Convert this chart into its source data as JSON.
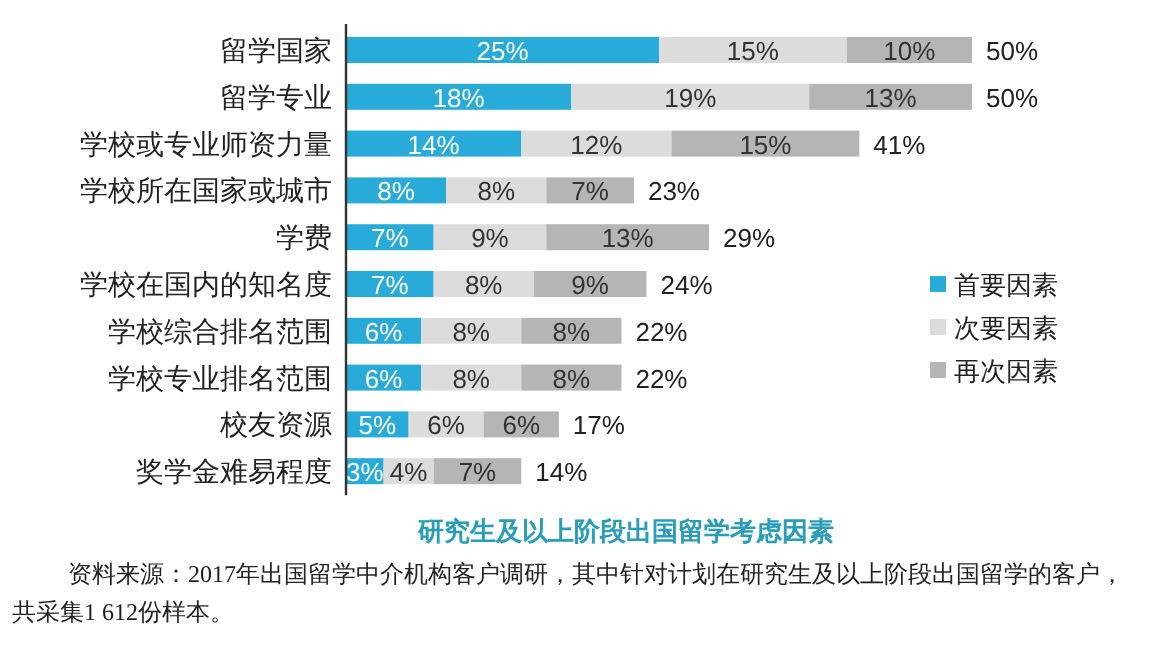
{
  "chart_data": {
    "type": "bar",
    "orientation": "horizontal",
    "stacked": true,
    "legend": "right",
    "title": "研究生及以上阶段出国留学考虑因素",
    "annotations": [
      "资料来源：2017年出国留学中介机构客户调研，其中针对计划在研究生及以上阶段出国留学的客户，共采集1 612份样本。"
    ],
    "categories": [
      "留学国家",
      "留学专业",
      "学校或专业师资力量",
      "学校所在国家或城市",
      "学费",
      "学校在国内的知名度",
      "学校综合排名范围",
      "学校专业排名范围",
      "校友资源",
      "奖学金难易程度"
    ],
    "series": [
      {
        "name": "首要因素",
        "color": "#29abd9",
        "values": [
          25,
          18,
          14,
          8,
          7,
          7,
          6,
          6,
          5,
          3
        ],
        "value_labels": [
          "25%",
          "18%",
          "14%",
          "8%",
          "7%",
          "7%",
          "6%",
          "6%",
          "5%",
          "3%"
        ]
      },
      {
        "name": "次要因素",
        "color": "#dcdcdc",
        "values": [
          15,
          19,
          12,
          8,
          9,
          8,
          8,
          8,
          6,
          4
        ],
        "value_labels": [
          "15%",
          "19%",
          "12%",
          "8%",
          "9%",
          "8%",
          "8%",
          "8%",
          "6%",
          "4%"
        ]
      },
      {
        "name": "再次因素",
        "color": "#b5b5b5",
        "values": [
          10,
          13,
          15,
          7,
          13,
          9,
          8,
          8,
          6,
          7
        ],
        "value_labels": [
          "10%",
          "13%",
          "15%",
          "7%",
          "13%",
          "9%",
          "8%",
          "8%",
          "6%",
          "7%"
        ]
      }
    ],
    "totals": [
      "50%",
      "50%",
      "41%",
      "23%",
      "29%",
      "24%",
      "22%",
      "22%",
      "17%",
      "14%"
    ]
  }
}
